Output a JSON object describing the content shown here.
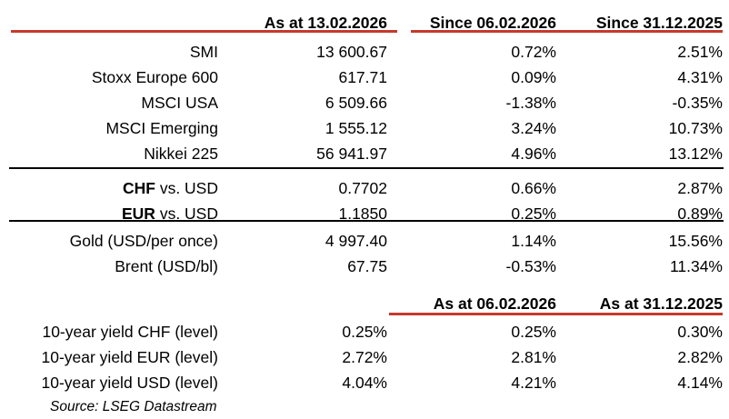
{
  "colors": {
    "accent_red": "#C5392C",
    "divider_black": "#000000"
  },
  "table1": {
    "headers": [
      "",
      "As at 13.02.2026",
      "Since 06.02.2026",
      "Since 31.12.2025"
    ],
    "rows": [
      {
        "label_bold": "",
        "label": "SMI",
        "v1": "13 600.67",
        "v2": "0.72%",
        "v3": "2.51%"
      },
      {
        "label_bold": "",
        "label": "Stoxx Europe 600",
        "v1": "617.71",
        "v2": "0.09%",
        "v3": "4.31%"
      },
      {
        "label_bold": "",
        "label": "MSCI USA",
        "v1": "6 509.66",
        "v2": "-1.38%",
        "v3": "-0.35%"
      },
      {
        "label_bold": "",
        "label": "MSCI Emerging",
        "v1": "1 555.12",
        "v2": "3.24%",
        "v3": "10.73%"
      },
      {
        "label_bold": "",
        "label": "Nikkei 225",
        "v1": "56 941.97",
        "v2": "4.96%",
        "v3": "13.12%"
      },
      {
        "label_bold": "CHF",
        "label": " vs. USD",
        "v1": "0.7702",
        "v2": "0.66%",
        "v3": "2.87%"
      },
      {
        "label_bold": "EUR",
        "label": " vs. USD",
        "v1": "1.1850",
        "v2": "0.25%",
        "v3": "0.89%"
      },
      {
        "label_bold": "",
        "label": "Gold (USD/per once)",
        "v1": "4 997.40",
        "v2": "1.14%",
        "v3": "15.56%"
      },
      {
        "label_bold": "",
        "label": "Brent (USD/bl)",
        "v1": "67.75",
        "v2": "-0.53%",
        "v3": "11.34%"
      }
    ]
  },
  "table2": {
    "headers": [
      "",
      "",
      "As at 06.02.2026",
      "As at 31.12.2025"
    ],
    "rows": [
      {
        "label": "10-year yield CHF (level)",
        "v1": "0.25%",
        "v2": "0.25%",
        "v3": "0.30%"
      },
      {
        "label": "10-year yield EUR (level)",
        "v1": "2.72%",
        "v2": "2.81%",
        "v3": "2.82%"
      },
      {
        "label": "10-year yield USD (level)",
        "v1": "4.04%",
        "v2": "4.21%",
        "v3": "4.14%"
      }
    ]
  },
  "footer": {
    "source": "Source: LSEG Datastream"
  }
}
